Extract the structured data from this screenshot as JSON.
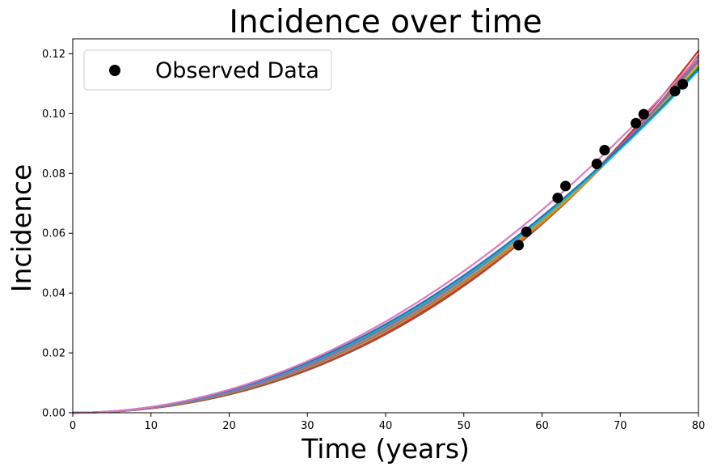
{
  "chart_data": {
    "type": "line",
    "title": "Incidence over time",
    "xlabel": "Time (years)",
    "ylabel": "Incidence",
    "xlim": [
      0,
      80
    ],
    "ylim": [
      0,
      0.125
    ],
    "x_ticks": [
      "0",
      "10",
      "20",
      "30",
      "40",
      "50",
      "60",
      "70",
      "80"
    ],
    "y_ticks": [
      "0.00",
      "0.02",
      "0.04",
      "0.06",
      "0.08",
      "0.10",
      "0.12"
    ],
    "x_tick_values": [
      0,
      10,
      20,
      30,
      40,
      50,
      60,
      70,
      80
    ],
    "y_tick_values": [
      0,
      0.02,
      0.04,
      0.06,
      0.08,
      0.1,
      0.12
    ],
    "grid": false,
    "legend": {
      "position": "top-left",
      "entries": [
        "Observed Data"
      ]
    },
    "model_curves": [
      {
        "color": "#d62728",
        "y_at_x": {
          "40": 0.0265,
          "60": 0.0633,
          "80": 0.121
        }
      },
      {
        "color": "#8c564b",
        "y_at_x": {
          "40": 0.0262,
          "60": 0.0628,
          "80": 0.1195
        }
      },
      {
        "color": "#ff7f0e",
        "y_at_x": {
          "40": 0.0272,
          "60": 0.0636,
          "80": 0.1175
        }
      },
      {
        "color": "#7f7f7f",
        "y_at_x": {
          "40": 0.0276,
          "60": 0.0638,
          "80": 0.1185
        }
      },
      {
        "color": "#bcbd22",
        "y_at_x": {
          "40": 0.0282,
          "60": 0.0645,
          "80": 0.1165
        }
      },
      {
        "color": "#2ca02c",
        "y_at_x": {
          "40": 0.0288,
          "60": 0.0649,
          "80": 0.1155
        }
      },
      {
        "color": "#9467bd",
        "y_at_x": {
          "40": 0.0284,
          "60": 0.0647,
          "80": 0.1175
        }
      },
      {
        "color": "#17becf",
        "y_at_x": {
          "40": 0.0292,
          "60": 0.0652,
          "80": 0.1145
        }
      },
      {
        "color": "#1f77b4",
        "y_at_x": {
          "40": 0.0296,
          "60": 0.0654,
          "80": 0.115
        }
      },
      {
        "color": "#e377c2",
        "y_at_x": {
          "40": 0.0305,
          "60": 0.0667,
          "80": 0.119
        }
      }
    ],
    "series": [
      {
        "name": "Observed Data",
        "marker": "circle",
        "color": "#000000",
        "points": [
          {
            "x": 57,
            "y": 0.056
          },
          {
            "x": 58,
            "y": 0.0605
          },
          {
            "x": 62,
            "y": 0.0718
          },
          {
            "x": 63,
            "y": 0.0758
          },
          {
            "x": 67,
            "y": 0.0832
          },
          {
            "x": 68,
            "y": 0.0878
          },
          {
            "x": 72,
            "y": 0.0968
          },
          {
            "x": 73,
            "y": 0.0998
          },
          {
            "x": 77,
            "y": 0.1075
          },
          {
            "x": 78,
            "y": 0.1098
          }
        ]
      }
    ]
  }
}
